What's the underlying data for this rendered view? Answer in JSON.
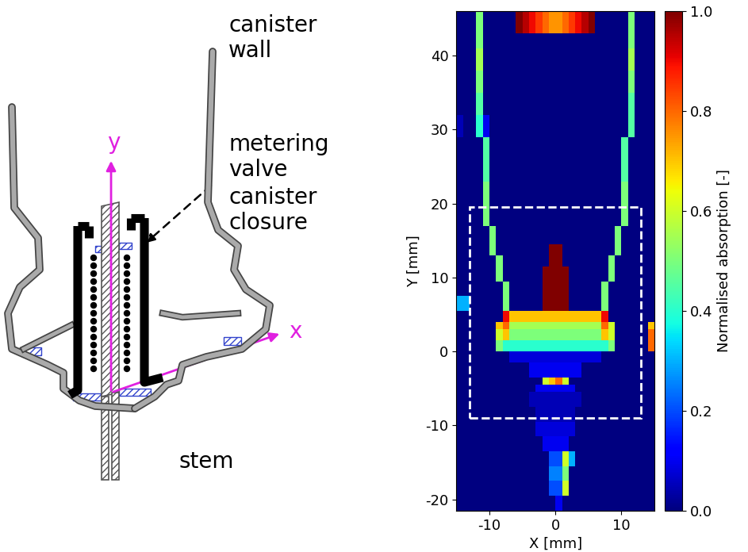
{
  "diagram": {
    "labels": {
      "canister_wall": "canister\nwall",
      "metering_valve": "metering\nvalve",
      "canister_closure": "canister\nclosure",
      "stem": "stem",
      "x_axis": "x",
      "y_axis": "y"
    }
  },
  "chart_data": {
    "type": "heatmap",
    "color": "jet",
    "xlabel": "X [mm]",
    "ylabel": "Y [mm]",
    "xlim": [
      -15,
      15
    ],
    "ylim": [
      -21.5,
      46
    ],
    "xticks": [
      -10,
      0,
      10
    ],
    "yticks": [
      -20,
      -10,
      0,
      10,
      20,
      30,
      40
    ],
    "highlight_box": {
      "x": [
        -13,
        13
      ],
      "y": [
        -9,
        19.5
      ]
    },
    "colorbar": {
      "label": "Normalised absorption [-]",
      "lim": [
        0,
        1
      ],
      "ticks": [
        {
          "value": 0,
          "label": "0.0"
        },
        {
          "value": 0.2,
          "label": "0.2"
        },
        {
          "value": 0.4,
          "label": "0.4"
        },
        {
          "value": 0.6,
          "label": "0.6"
        },
        {
          "value": 0.8,
          "label": "0.8"
        },
        {
          "value": 1,
          "label": "1.0"
        }
      ]
    },
    "x_edges": [
      -15,
      -14,
      -13,
      -12,
      -11,
      -10,
      -9,
      -8,
      -7,
      -6,
      -5,
      -4,
      -3,
      -2,
      -1,
      0,
      1,
      2,
      3,
      4,
      5,
      6,
      7,
      8,
      9,
      10,
      11,
      12,
      13,
      14,
      15
    ],
    "y_edges": [
      -21.5,
      -19.5,
      -17.5,
      -15.5,
      -13.5,
      -11.5,
      -9.5,
      -7.5,
      -5.5,
      -4.5,
      -3.5,
      -1.5,
      0,
      1.5,
      3,
      4,
      5.5,
      7.5,
      9.5,
      11.5,
      13,
      14.5,
      17,
      20,
      23,
      26,
      29,
      32,
      35,
      38,
      41,
      43,
      46
    ],
    "cells": [
      [
        0,
        0,
        0,
        0,
        0,
        0,
        0,
        0,
        0,
        0,
        0,
        0,
        0,
        0,
        0,
        0.1,
        0,
        0,
        0,
        0,
        0,
        0,
        0,
        0,
        0,
        0,
        0,
        0,
        0,
        0
      ],
      [
        0,
        0,
        0,
        0,
        0,
        0,
        0,
        0,
        0,
        0,
        0,
        0,
        0,
        0,
        0.2,
        0.2,
        0.6,
        0,
        0,
        0,
        0,
        0,
        0,
        0,
        0,
        0,
        0,
        0,
        0,
        0
      ],
      [
        0,
        0,
        0,
        0,
        0,
        0,
        0,
        0,
        0,
        0,
        0,
        0,
        0,
        0,
        0.25,
        0.25,
        0.5,
        0,
        0,
        0,
        0,
        0,
        0,
        0,
        0,
        0,
        0,
        0,
        0,
        0
      ],
      [
        0,
        0,
        0,
        0,
        0,
        0,
        0,
        0,
        0,
        0,
        0,
        0,
        0,
        0,
        0.2,
        0.2,
        0.6,
        0.3,
        0,
        0,
        0,
        0,
        0,
        0,
        0,
        0,
        0,
        0,
        0,
        0
      ],
      [
        0,
        0,
        0,
        0,
        0,
        0,
        0,
        0,
        0,
        0,
        0,
        0,
        0,
        0.1,
        0.1,
        0.1,
        0.1,
        0,
        0,
        0,
        0,
        0,
        0,
        0,
        0,
        0,
        0,
        0,
        0,
        0
      ],
      [
        0,
        0,
        0,
        0,
        0,
        0,
        0,
        0,
        0,
        0,
        0,
        0,
        0.08,
        0.08,
        0.08,
        0.08,
        0.08,
        0.08,
        0,
        0,
        0,
        0,
        0,
        0,
        0,
        0,
        0,
        0,
        0,
        0
      ],
      [
        0,
        0,
        0,
        0,
        0,
        0,
        0,
        0,
        0,
        0,
        0,
        0,
        0.05,
        0.05,
        0.05,
        0.05,
        0.05,
        0.05,
        0,
        0,
        0,
        0,
        0,
        0,
        0,
        0,
        0,
        0,
        0,
        0
      ],
      [
        0,
        0,
        0,
        0,
        0,
        0,
        0,
        0,
        0,
        0,
        0,
        0.05,
        0.05,
        0.05,
        0.05,
        0.05,
        0.05,
        0.05,
        0.05,
        0,
        0,
        0,
        0,
        0,
        0,
        0,
        0,
        0,
        0,
        0
      ],
      [
        0,
        0,
        0,
        0,
        0,
        0,
        0,
        0,
        0,
        0,
        0,
        0,
        0.1,
        0.1,
        0.1,
        0.1,
        0.1,
        0.1,
        0,
        0,
        0,
        0,
        0,
        0,
        0,
        0,
        0,
        0,
        0,
        0
      ],
      [
        0,
        0,
        0,
        0,
        0,
        0,
        0,
        0,
        0,
        0,
        0,
        0,
        0,
        0.6,
        0.7,
        0.8,
        0.6,
        0,
        0,
        0,
        0,
        0,
        0,
        0,
        0,
        0,
        0,
        0,
        0,
        0
      ],
      [
        0,
        0,
        0,
        0,
        0,
        0,
        0,
        0,
        0,
        0,
        0,
        0.1,
        0.1,
        0.1,
        0.1,
        0.1,
        0.1,
        0.1,
        0.1,
        0,
        0,
        0,
        0,
        0,
        0,
        0,
        0,
        0,
        0,
        0
      ],
      [
        0,
        0,
        0,
        0,
        0,
        0,
        0,
        0,
        0.08,
        0.08,
        0.08,
        0.08,
        0.08,
        0.08,
        0.08,
        0.08,
        0.08,
        0.08,
        0.08,
        0.08,
        0.08,
        0.08,
        0,
        0,
        0,
        0,
        0,
        0,
        0,
        0
      ],
      [
        0,
        0,
        0,
        0,
        0,
        0,
        0.5,
        0.4,
        0.4,
        0.4,
        0.4,
        0.4,
        0.4,
        0.4,
        0.4,
        0.4,
        0.4,
        0.4,
        0.4,
        0.4,
        0.4,
        0.4,
        0.4,
        0.5,
        0,
        0,
        0,
        0,
        0,
        0.8
      ],
      [
        0,
        0,
        0,
        0,
        0,
        0,
        0.6,
        0.7,
        0.5,
        0.5,
        0.5,
        0.5,
        0.5,
        0.5,
        0.5,
        0.5,
        0.5,
        0.5,
        0.5,
        0.5,
        0.5,
        0.5,
        0.7,
        0.6,
        0,
        0,
        0,
        0,
        0,
        0.8
      ],
      [
        0,
        0,
        0,
        0,
        0,
        0,
        0.7,
        0.8,
        0.55,
        0.55,
        0.55,
        0.55,
        0.55,
        0.55,
        0.55,
        0.55,
        0.55,
        0.55,
        0.55,
        0.55,
        0.55,
        0.55,
        0.8,
        0.6,
        0,
        0,
        0,
        0,
        0,
        0.7
      ],
      [
        0,
        0,
        0,
        0,
        0,
        0,
        0,
        0.9,
        0.7,
        0.7,
        0.7,
        0.7,
        0.7,
        0.7,
        0.7,
        0.7,
        0.7,
        0.7,
        0.7,
        0.7,
        0.7,
        0.7,
        0.9,
        0,
        0,
        0,
        0,
        0,
        0,
        0
      ],
      [
        0.3,
        0.3,
        0,
        0,
        0,
        0,
        0,
        0.5,
        0,
        0,
        0,
        0,
        0,
        1,
        1,
        1,
        1,
        0,
        0,
        0,
        0,
        0,
        0.5,
        0,
        0,
        0,
        0,
        0,
        0,
        0
      ],
      [
        0,
        0,
        0,
        0,
        0,
        0,
        0,
        0.5,
        0,
        0,
        0,
        0,
        0,
        1,
        1,
        1,
        1,
        0,
        0,
        0,
        0,
        0,
        0.5,
        0,
        0,
        0,
        0,
        0,
        0,
        0
      ],
      [
        0,
        0,
        0,
        0,
        0,
        0,
        0.5,
        0,
        0,
        0,
        0,
        0,
        0,
        1,
        1,
        1,
        1,
        0,
        0,
        0,
        0,
        0,
        0,
        0.5,
        0,
        0,
        0,
        0,
        0,
        0
      ],
      [
        0,
        0,
        0,
        0,
        0,
        0,
        0.5,
        0,
        0,
        0,
        0,
        0,
        0,
        0,
        1,
        1,
        0,
        0,
        0,
        0,
        0,
        0,
        0,
        0.5,
        0,
        0,
        0,
        0,
        0,
        0
      ],
      [
        0,
        0,
        0,
        0,
        0,
        0.5,
        0,
        0,
        0,
        0,
        0,
        0,
        0,
        0,
        1,
        1,
        0,
        0,
        0,
        0,
        0,
        0,
        0,
        0,
        0.5,
        0,
        0,
        0,
        0,
        0
      ],
      [
        0,
        0,
        0,
        0,
        0,
        0.5,
        0,
        0,
        0,
        0,
        0,
        0,
        0,
        0,
        0,
        0,
        0,
        0,
        0,
        0,
        0,
        0,
        0,
        0,
        0.5,
        0,
        0,
        0,
        0,
        0
      ],
      [
        0,
        0,
        0,
        0,
        0.5,
        0,
        0,
        0,
        0,
        0,
        0,
        0,
        0,
        0,
        0,
        0,
        0,
        0,
        0,
        0,
        0,
        0,
        0,
        0,
        0,
        0.5,
        0,
        0,
        0,
        0
      ],
      [
        0,
        0,
        0,
        0,
        0.5,
        0,
        0,
        0,
        0,
        0,
        0,
        0,
        0,
        0,
        0,
        0,
        0,
        0,
        0,
        0,
        0,
        0,
        0,
        0,
        0,
        0.5,
        0,
        0,
        0,
        0
      ],
      [
        0,
        0,
        0,
        0,
        0.45,
        0,
        0,
        0,
        0,
        0,
        0,
        0,
        0,
        0,
        0,
        0,
        0,
        0,
        0,
        0,
        0,
        0,
        0,
        0,
        0,
        0.45,
        0,
        0,
        0,
        0
      ],
      [
        0,
        0,
        0,
        0,
        0.45,
        0,
        0,
        0,
        0,
        0,
        0,
        0,
        0,
        0,
        0,
        0,
        0,
        0,
        0,
        0,
        0,
        0,
        0,
        0,
        0,
        0.45,
        0,
        0,
        0,
        0
      ],
      [
        0.05,
        0,
        0,
        0.4,
        0.1,
        0,
        0,
        0,
        0,
        0,
        0,
        0,
        0,
        0,
        0,
        0,
        0,
        0,
        0,
        0,
        0,
        0,
        0,
        0,
        0,
        0,
        0.45,
        0,
        0,
        0
      ],
      [
        0,
        0,
        0,
        0.45,
        0,
        0,
        0,
        0,
        0,
        0,
        0,
        0,
        0,
        0,
        0,
        0,
        0,
        0,
        0,
        0,
        0,
        0,
        0,
        0,
        0,
        0,
        0.45,
        0,
        0,
        0
      ],
      [
        0,
        0,
        0,
        0.5,
        0,
        0,
        0,
        0,
        0,
        0,
        0,
        0,
        0,
        0,
        0,
        0,
        0,
        0,
        0,
        0,
        0,
        0,
        0,
        0,
        0,
        0,
        0.5,
        0,
        0,
        0
      ],
      [
        0,
        0,
        0,
        0.55,
        0,
        0,
        0,
        0,
        0,
        0,
        0,
        0,
        0,
        0,
        0,
        0,
        0,
        0,
        0,
        0,
        0,
        0,
        0,
        0,
        0,
        0,
        0.55,
        0,
        0,
        0
      ],
      [
        0,
        0,
        0,
        0.5,
        0,
        0,
        0,
        0,
        0,
        0,
        0,
        0,
        0,
        0,
        0,
        0,
        0,
        0,
        0,
        0,
        0,
        0,
        0,
        0,
        0,
        0,
        0.5,
        0,
        0,
        0
      ],
      [
        0,
        0,
        0,
        0.5,
        0,
        0,
        0,
        0,
        0,
        1.0,
        0.95,
        0.9,
        0.85,
        0.8,
        0.75,
        0.75,
        0.8,
        0.85,
        0.9,
        0.95,
        1.0,
        0,
        0,
        0,
        0,
        0,
        0.5,
        0,
        0,
        0
      ]
    ]
  }
}
